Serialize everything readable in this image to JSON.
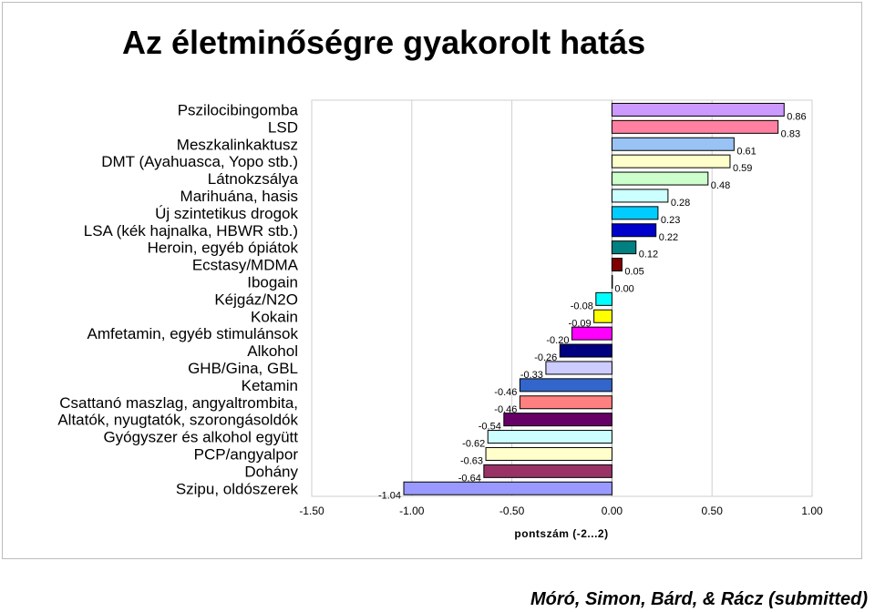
{
  "slide": {
    "title": "Az életminőségre gyakorolt hatás",
    "citation": "Móró, Simon, Bárd, & Rácz (submitted)"
  },
  "chart_data": {
    "type": "bar",
    "orientation": "horizontal",
    "title": "Az életminőségre gyakorolt hatás",
    "xlabel": "pontszám (-2...2)",
    "ylabel": "",
    "xlim": [
      -1.5,
      1.0
    ],
    "xticks": [
      -1.5,
      -1.0,
      -0.5,
      0.0,
      0.5,
      1.0
    ],
    "xtick_labels": [
      "-1.50",
      "-1.00",
      "-0.50",
      "0.00",
      "0.50",
      "1.00"
    ],
    "grid": "vertical",
    "categories": [
      "Pszilocibingomba",
      "LSD",
      "Meszkalinkaktusz",
      "DMT (Ayahuasca, Yopo stb.)",
      "Látnokzsálya",
      "Marihuána, hasis",
      "Új szintetikus drogok",
      "LSA (kék hajnalka, HBWR stb.)",
      "Heroin, egyéb ópiátok",
      "Ecstasy/MDMA",
      "Ibogain",
      "Kéjgáz/N2O",
      "Kokain",
      "Amfetamin, egyéb stimulánsok",
      "Alkohol",
      "GHB/Gina, GBL",
      "Ketamin",
      "Csattanó maszlag, angyaltrombita,",
      "Altatók, nyugtatók, szorongásoldók",
      "Gyógyszer és alkohol együtt",
      "PCP/angyalpor",
      "Dohány",
      "Szipu, oldószerek"
    ],
    "values": [
      0.86,
      0.83,
      0.61,
      0.59,
      0.48,
      0.28,
      0.23,
      0.22,
      0.12,
      0.05,
      0.0,
      -0.08,
      -0.09,
      -0.2,
      -0.26,
      -0.33,
      -0.46,
      -0.46,
      -0.54,
      -0.62,
      -0.63,
      -0.64,
      -1.04
    ],
    "value_labels": [
      "0.86",
      "0.83",
      "0.61",
      "0.59",
      "0.48",
      "0.28",
      "0.23",
      "0.22",
      "0.12",
      "0.05",
      "0.00",
      "-0.08",
      "-0.09",
      "-0.20",
      "-0.26",
      "-0.33",
      "-0.46",
      "-0.46",
      "-0.54",
      "-0.62",
      "-0.63",
      "-0.64",
      "-1.04"
    ],
    "colors": [
      "#cc99ff",
      "#ff80a0",
      "#99c2f5",
      "#ffffcc",
      "#ccffcc",
      "#ccffff",
      "#00ccff",
      "#0000cc",
      "#008080",
      "#800000",
      "#ffffff",
      "#00ffff",
      "#ffff00",
      "#ff00ff",
      "#000080",
      "#ccccff",
      "#3366cc",
      "#ff8080",
      "#660066",
      "#ccffff",
      "#ffffcc",
      "#993366",
      "#9999ff"
    ]
  }
}
